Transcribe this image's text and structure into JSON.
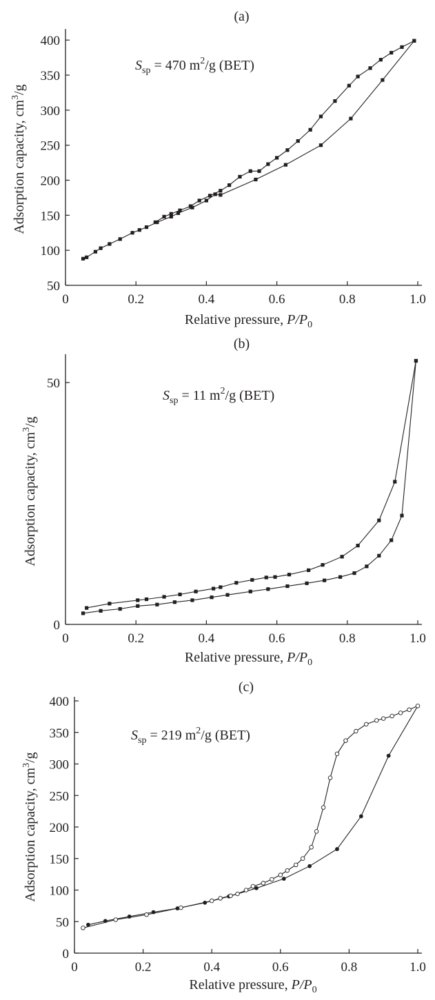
{
  "chart_data": [
    {
      "type": "line",
      "panel": "(a)",
      "annotation": {
        "prefix": "S",
        "sub": "sp",
        "text": " = 470 m",
        "sup": "2",
        "suffix": "/g (BET)"
      },
      "xlabel": "Relative pressure, P/P0",
      "ylabel": "Adsorption capacity, cm3/g",
      "xlim": [
        0,
        1.0
      ],
      "ylim": [
        50,
        410
      ],
      "xticks": [
        0,
        0.2,
        0.4,
        0.6,
        0.8,
        1.0
      ],
      "xtick_labels": [
        "0",
        "0.2",
        "0.4",
        "0.6",
        "0.8",
        "1.0"
      ],
      "yticks": [
        50,
        100,
        150,
        200,
        250,
        300,
        350,
        400
      ],
      "ytick_labels": [
        "50",
        "100",
        "150",
        "200",
        "250",
        "300",
        "350",
        "400"
      ],
      "grid": false,
      "series": [
        {
          "marker": "square",
          "x": [
            0.05,
            0.06,
            0.085,
            0.1,
            0.125,
            0.155,
            0.19,
            0.21,
            0.23,
            0.26,
            0.3,
            0.32,
            0.36,
            0.4,
            0.425,
            0.44,
            0.54,
            0.625,
            0.725,
            0.81,
            0.9,
            0.99
          ],
          "y": [
            88,
            90,
            98,
            103,
            109,
            116,
            125,
            129,
            133,
            140,
            148,
            153,
            161,
            171,
            180,
            179,
            201,
            222,
            250,
            288,
            343,
            399
          ]
        },
        {
          "marker": "square",
          "x": [
            0.99,
            0.955,
            0.925,
            0.895,
            0.865,
            0.83,
            0.805,
            0.765,
            0.725,
            0.695,
            0.66,
            0.63,
            0.6,
            0.575,
            0.55,
            0.525,
            0.495,
            0.465,
            0.44,
            0.41,
            0.38,
            0.355,
            0.325,
            0.3,
            0.28,
            0.255
          ],
          "y": [
            399,
            390,
            382,
            372,
            360,
            348,
            335,
            313,
            291,
            272,
            256,
            243,
            232,
            223,
            213,
            213,
            205,
            193,
            185,
            178,
            171,
            163,
            157,
            152,
            148,
            140
          ]
        }
      ]
    },
    {
      "type": "line",
      "panel": "(b)",
      "annotation": {
        "prefix": "S",
        "sub": "sp",
        "text": " = 11 m",
        "sup": "2",
        "suffix": "/g (BET)"
      },
      "xlabel": "Relative pressure, P/P0",
      "ylabel": "Adsorption capacity, cm3/g",
      "xlim": [
        0,
        1.0
      ],
      "ylim": [
        0,
        55
      ],
      "xticks": [
        0,
        0.2,
        0.4,
        0.6,
        0.8,
        1.0
      ],
      "xtick_labels": [
        "0",
        "0.2",
        "0.4",
        "0.6",
        "0.8",
        "1.0"
      ],
      "yticks": [
        0,
        50
      ],
      "ytick_labels": [
        "0",
        "50"
      ],
      "grid": false,
      "series": [
        {
          "marker": "square",
          "x": [
            0.05,
            0.1,
            0.155,
            0.205,
            0.26,
            0.31,
            0.36,
            0.415,
            0.46,
            0.525,
            0.575,
            0.63,
            0.685,
            0.735,
            0.78,
            0.82,
            0.855,
            0.89,
            0.925,
            0.955,
            0.995
          ],
          "y": [
            2.3,
            2.8,
            3.2,
            3.8,
            4.1,
            4.6,
            5.0,
            5.6,
            6.1,
            6.8,
            7.3,
            7.9,
            8.5,
            9.1,
            9.8,
            10.6,
            12.0,
            14.2,
            17.4,
            22.5,
            54.5
          ]
        },
        {
          "marker": "square",
          "x": [
            0.995,
            0.935,
            0.89,
            0.83,
            0.785,
            0.73,
            0.69,
            0.635,
            0.595,
            0.57,
            0.53,
            0.485,
            0.44,
            0.42,
            0.37,
            0.325,
            0.28,
            0.23,
            0.205,
            0.125,
            0.06
          ],
          "y": [
            54.5,
            29.5,
            21.5,
            16.3,
            14.0,
            12.3,
            11.2,
            10.3,
            9.8,
            9.7,
            9.2,
            8.6,
            7.7,
            7.4,
            6.8,
            6.2,
            5.7,
            5.2,
            5.0,
            4.3,
            3.4
          ]
        }
      ]
    },
    {
      "type": "line",
      "panel": "(c)",
      "annotation": {
        "prefix": "S",
        "sub": "sp",
        "text": " = 219 m",
        "sup": "2",
        "suffix": "/g (BET)"
      },
      "xlabel": "Relative pressure, P/P0",
      "ylabel": "Adsorption capacity, cm3/g",
      "xlim": [
        0,
        1.0
      ],
      "ylim": [
        0,
        400
      ],
      "xticks": [
        0,
        0.2,
        0.4,
        0.6,
        0.8,
        1.0
      ],
      "xtick_labels": [
        "0",
        "0.2",
        "0.4",
        "0.6",
        "0.8",
        "1.0"
      ],
      "yticks": [
        0,
        50,
        100,
        150,
        200,
        250,
        300,
        350,
        400
      ],
      "ytick_labels": [
        "0",
        "50",
        "100",
        "150",
        "200",
        "250",
        "300",
        "350",
        "400"
      ],
      "grid": false,
      "series": [
        {
          "marker": "filled-circle",
          "x": [
            0.04,
            0.09,
            0.16,
            0.23,
            0.3,
            0.38,
            0.45,
            0.53,
            0.61,
            0.685,
            0.765,
            0.835,
            0.915,
            1.0
          ],
          "y": [
            45,
            51,
            58,
            65,
            71,
            80,
            90,
            103,
            118,
            138,
            165,
            217,
            313,
            392
          ]
        },
        {
          "marker": "open-circle",
          "x": [
            0.025,
            0.12,
            0.21,
            0.31,
            0.4,
            0.425,
            0.455,
            0.475,
            0.5,
            0.52,
            0.55,
            0.575,
            0.6,
            0.62,
            0.645,
            0.665,
            0.69,
            0.705,
            0.725,
            0.745,
            0.765,
            0.79,
            0.82,
            0.85,
            0.88,
            0.9,
            0.925,
            0.95,
            0.975,
            1.0
          ],
          "y": [
            40,
            53,
            61,
            72,
            83,
            87,
            91,
            94,
            100,
            106,
            111,
            117,
            124,
            131,
            140,
            150,
            168,
            193,
            231,
            278,
            316,
            337,
            352,
            363,
            369,
            372,
            376,
            381,
            386,
            392
          ]
        }
      ]
    }
  ]
}
